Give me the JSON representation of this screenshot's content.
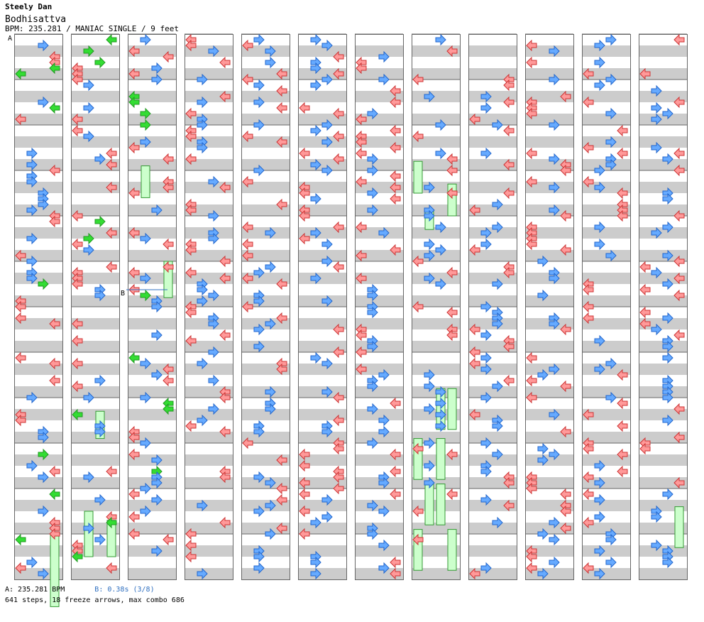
{
  "song": {
    "artist": "Steely Dan",
    "title": "Bodhisattva",
    "info": "BPM: 235.281 / MANIAC SINGLE / 9 feet"
  },
  "markers": {
    "a_label": "A",
    "b_label": "B"
  },
  "footer": {
    "bpm_a": "A: 235.281 BPM",
    "stop_b": "B: 0.38s (3/8)",
    "summary": "641 steps, 18 freeze arrows, max combo 686"
  },
  "stats": {
    "steps": 641,
    "freeze_arrows": 18,
    "max_combo": 686,
    "columns": 12,
    "measures_per_column": 12
  },
  "colors": {
    "red_arrow": "#ff9999",
    "blue_arrow": "#66aaff",
    "green_arrow": "#33dd33",
    "freeze": "#ccffcc",
    "stripe": "#cccccc",
    "border": "#666666"
  }
}
